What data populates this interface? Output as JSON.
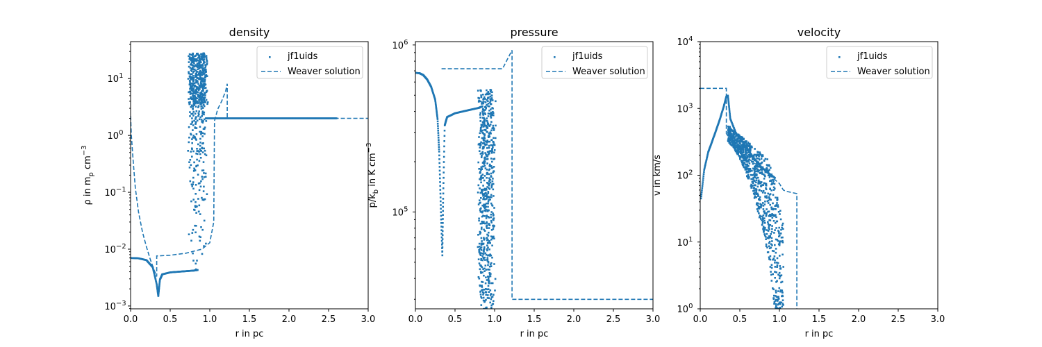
{
  "chart_data": [
    {
      "type": "scatter",
      "title": "density",
      "xlabel": "r in pc",
      "ylabel_parts": [
        "ρ in m",
        "p",
        " cm",
        "−3"
      ],
      "yscale": "log",
      "xlim": [
        0,
        3
      ],
      "ylim_log10": [
        -3.05,
        1.65
      ],
      "xticks": [
        "0.0",
        "0.5",
        "1.0",
        "1.5",
        "2.0",
        "2.5",
        "3.0"
      ],
      "yticks": [
        {
          "base": "10",
          "exp": "−3",
          "v": -3
        },
        {
          "base": "10",
          "exp": "−2",
          "v": -2
        },
        {
          "base": "10",
          "exp": "−1",
          "v": -1
        },
        {
          "base": "10",
          "exp": "0",
          "v": 0
        },
        {
          "base": "10",
          "exp": "1",
          "v": 1
        }
      ],
      "legend": [
        "jf1uids",
        "Weaver solution"
      ],
      "scatter_profile": [
        [
          0.0,
          0.007
        ],
        [
          0.1,
          0.0069
        ],
        [
          0.2,
          0.0064
        ],
        [
          0.28,
          0.0048
        ],
        [
          0.33,
          0.0024
        ],
        [
          0.35,
          0.0015
        ],
        [
          0.37,
          0.0029
        ],
        [
          0.4,
          0.0036
        ],
        [
          0.5,
          0.0039
        ],
        [
          0.6,
          0.004
        ],
        [
          0.7,
          0.0041
        ],
        [
          0.8,
          0.0042
        ],
        [
          0.85,
          0.0043
        ]
      ],
      "scatter_band": {
        "x": [
          0.72,
          0.98
        ],
        "y": [
          0.0039,
          28
        ]
      },
      "scatter_tail": [
        [
          0.95,
          2.0
        ],
        [
          2.6,
          2.0
        ]
      ],
      "line_data": [
        [
          0.0,
          2.2
        ],
        [
          0.01,
          1.0
        ],
        [
          0.03,
          0.4
        ],
        [
          0.06,
          0.12
        ],
        [
          0.1,
          0.045
        ],
        [
          0.15,
          0.02
        ],
        [
          0.2,
          0.011
        ],
        [
          0.25,
          0.0065
        ],
        [
          0.3,
          0.0042
        ],
        [
          0.33,
          0.0033
        ],
        [
          0.33,
          0.0076
        ],
        [
          0.5,
          0.0078
        ],
        [
          0.7,
          0.0085
        ],
        [
          0.9,
          0.01
        ],
        [
          1.0,
          0.013
        ],
        [
          1.05,
          0.03
        ],
        [
          1.055,
          0.3
        ],
        [
          1.06,
          1.8
        ],
        [
          1.1,
          2.9
        ],
        [
          1.15,
          4.0
        ],
        [
          1.2,
          6.0
        ],
        [
          1.22,
          8.1
        ],
        [
          1.22,
          2.0
        ],
        [
          3.0,
          2.0
        ]
      ]
    },
    {
      "type": "scatter",
      "title": "pressure",
      "xlabel": "r in pc",
      "ylabel_parts": [
        "p/k",
        "b",
        " in K cm",
        "−3"
      ],
      "yscale": "log",
      "xlim": [
        0,
        3
      ],
      "ylim_log10": [
        4.42,
        6.02
      ],
      "xticks": [
        "0.0",
        "0.5",
        "1.0",
        "1.5",
        "2.0",
        "2.5",
        "3.0"
      ],
      "yticks": [
        {
          "base": "10",
          "exp": "5",
          "v": 5
        },
        {
          "base": "10",
          "exp": "6",
          "v": 6
        }
      ],
      "legend": [
        "jf1uids",
        "Weaver solution"
      ],
      "scatter_profile": [
        [
          0.0,
          680000
        ],
        [
          0.05,
          678000
        ],
        [
          0.1,
          660000
        ],
        [
          0.15,
          620000
        ],
        [
          0.2,
          560000
        ],
        [
          0.25,
          470000
        ],
        [
          0.28,
          360000
        ],
        [
          0.3,
          230000
        ],
        [
          0.32,
          110000
        ],
        [
          0.34,
          55000
        ],
        [
          0.35,
          120000
        ],
        [
          0.37,
          330000
        ],
        [
          0.4,
          370000
        ],
        [
          0.5,
          390000
        ],
        [
          0.6,
          400000
        ],
        [
          0.7,
          410000
        ],
        [
          0.8,
          420000
        ],
        [
          0.85,
          430000
        ]
      ],
      "scatter_band": {
        "x": [
          0.78,
          1.02
        ],
        "y": [
          26000,
          540000
        ]
      },
      "scatter_tail": [
        [
          0.88,
          26000
        ],
        [
          2.6,
          26000
        ]
      ],
      "line_data": [
        [
          0.33,
          720000
        ],
        [
          0.5,
          720000
        ],
        [
          0.8,
          720000
        ],
        [
          1.1,
          720000
        ],
        [
          1.22,
          930000
        ],
        [
          1.22,
          30000
        ],
        [
          3.0,
          30000
        ]
      ]
    },
    {
      "type": "scatter",
      "title": "velocity",
      "xlabel": "r in pc",
      "ylabel": "v in km/s",
      "yscale": "log",
      "xlim": [
        0,
        3
      ],
      "ylim_log10": [
        0,
        4
      ],
      "xticks": [
        "0.0",
        "0.5",
        "1.0",
        "1.5",
        "2.0",
        "2.5",
        "3.0"
      ],
      "yticks": [
        {
          "base": "10",
          "exp": "0",
          "v": 0
        },
        {
          "base": "10",
          "exp": "1",
          "v": 1
        },
        {
          "base": "10",
          "exp": "2",
          "v": 2
        },
        {
          "base": "10",
          "exp": "3",
          "v": 3
        },
        {
          "base": "10",
          "exp": "4",
          "v": 4
        }
      ],
      "legend": [
        "jf1uids",
        "Weaver solution"
      ],
      "scatter_profile": [
        [
          0.01,
          45
        ],
        [
          0.05,
          120
        ],
        [
          0.1,
          220
        ],
        [
          0.15,
          320
        ],
        [
          0.2,
          470
        ],
        [
          0.25,
          700
        ],
        [
          0.3,
          1100
        ],
        [
          0.33,
          1500
        ],
        [
          0.35,
          1550
        ],
        [
          0.38,
          700
        ],
        [
          0.45,
          430
        ],
        [
          0.55,
          300
        ],
        [
          0.65,
          200
        ],
        [
          0.75,
          140
        ],
        [
          0.85,
          110
        ],
        [
          0.95,
          90
        ]
      ],
      "scatter_band": {
        "x": [
          0.35,
          1.05
        ],
        "y": [
          1,
          600
        ]
      },
      "scatter_tail": [],
      "line_data": [
        [
          0.0,
          2000
        ],
        [
          0.33,
          2000
        ],
        [
          0.33,
          420
        ],
        [
          0.5,
          220
        ],
        [
          0.8,
          120
        ],
        [
          1.0,
          75
        ],
        [
          1.05,
          60
        ],
        [
          1.1,
          57
        ],
        [
          1.22,
          53
        ],
        [
          1.22,
          0.5
        ]
      ]
    }
  ],
  "colors": {
    "series": "#1f77b4"
  }
}
